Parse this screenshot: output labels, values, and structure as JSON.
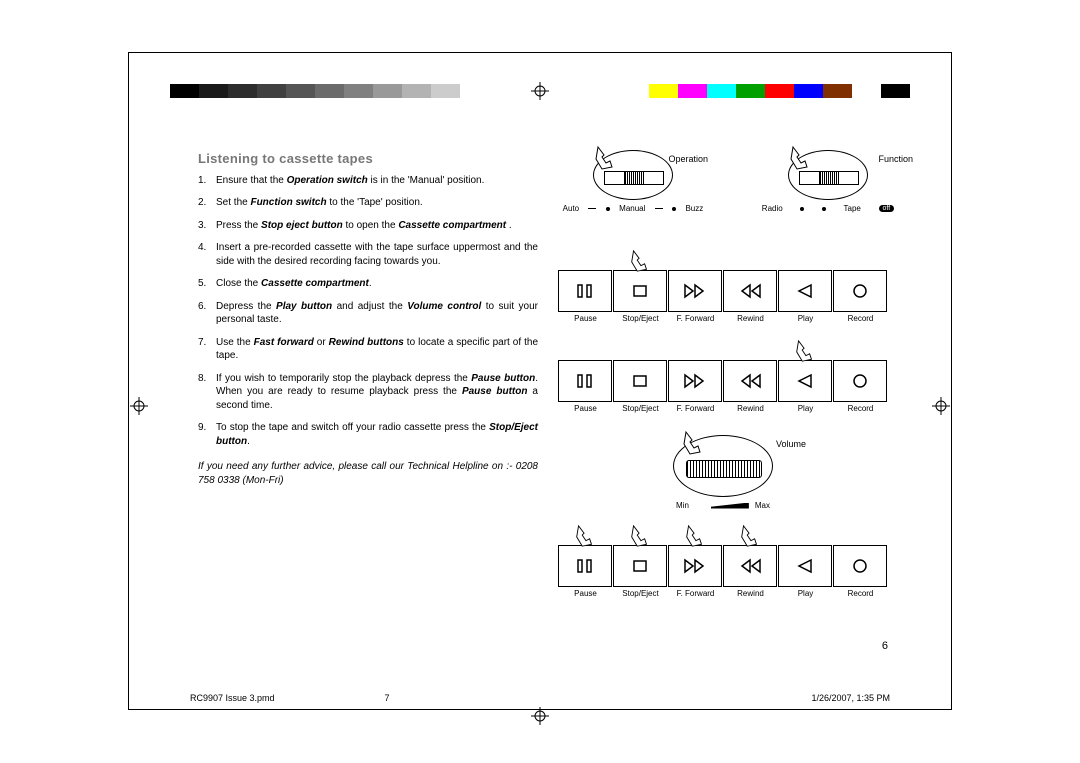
{
  "colorBarsLeft": [
    "#000000",
    "#1a1a1a",
    "#2d2d2d",
    "#404040",
    "#555555",
    "#6b6b6b",
    "#808080",
    "#999999",
    "#b3b3b3",
    "#cccccc",
    "#ffffff"
  ],
  "colorBarsRight": [
    "#ffff00",
    "#ff00ff",
    "#00ffff",
    "#00a000",
    "#ff0000",
    "#0000ff",
    "#803000",
    "#ffffff",
    "#000000"
  ],
  "title": "Listening to cassette tapes",
  "steps": [
    {
      "n": "1.",
      "html": "Ensure that the <b><i>Operation switch</i></b>  is in the 'Manual' position."
    },
    {
      "n": "2.",
      "html": "Set the <b><i>Function switch</i></b> to the 'Tape' position."
    },
    {
      "n": "3.",
      "html": "Press the <b><i>Stop eject button</i></b> to open the <b><i>Cassette compartment</i></b> ."
    },
    {
      "n": "4.",
      "html": "Insert a pre-recorded cassette with the tape surface uppermost and the side with the desired recording facing towards you."
    },
    {
      "n": "5.",
      "html": "Close the <b><i>Cassette compartment</i></b>."
    },
    {
      "n": "6.",
      "html": "Depress the <b><i>Play button</i></b> and adjust the <b><i>Volume control</i></b>  to suit your personal taste."
    },
    {
      "n": "7.",
      "html": "Use the <b><i>Fast forward</i></b> or <b><i>Rewind buttons</i></b>  to locate a specific part of the tape."
    },
    {
      "n": "8.",
      "html": "If you wish to temporarily stop the playback depress the <b><i>Pause button</i></b>. When you are ready to resume playback press the <b><i>Pause button</i></b> a second time."
    },
    {
      "n": "9.",
      "html": "To stop the tape and switch off your radio cassette press the <b><i>Stop/Eject button</i></b>."
    }
  ],
  "helpline": "If you need any further advice, please call our Technical Helpline on :- 0208 758 0338 (Mon-Fri)",
  "pageNum": "6",
  "footer": {
    "file": "RC9907 Issue 3.pmd",
    "page": "7",
    "date": "1/26/2007, 1:35 PM"
  },
  "switches": {
    "operation": {
      "label": "Operation",
      "opts": [
        "Auto",
        "Manual",
        "Buzz"
      ]
    },
    "function": {
      "label": "Function",
      "opts": [
        "Radio",
        "Tape",
        "off"
      ]
    }
  },
  "buttonLabels": [
    "Pause",
    "Stop/Eject",
    "F. Forward",
    "Rewind",
    "Play",
    "Record"
  ],
  "volume": {
    "label": "Volume",
    "min": "Min",
    "max": "Max"
  }
}
